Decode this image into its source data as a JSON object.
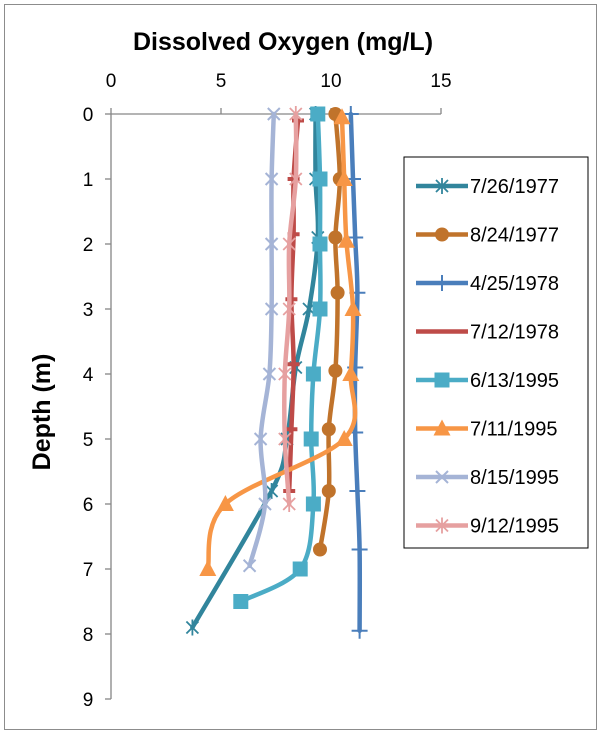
{
  "chart_data": {
    "type": "line",
    "title": "Dissolved Oxygen (mg/L)",
    "xlabel": "Dissolved Oxygen (mg/L)",
    "ylabel": "Depth (m)",
    "x_axis_position": "top",
    "y_axis_inverted": true,
    "xlim": [
      0,
      15
    ],
    "ylim": [
      0,
      9
    ],
    "x_ticks": [
      "0",
      "5",
      "10",
      "15"
    ],
    "y_ticks": [
      "0",
      "1",
      "2",
      "3",
      "4",
      "5",
      "6",
      "7",
      "8",
      "9"
    ],
    "grid": false,
    "legend_position": "right",
    "series": [
      {
        "name": "7/26/1977",
        "color": "#31859c",
        "marker": "star",
        "points": [
          [
            9.3,
            0
          ],
          [
            9.3,
            1
          ],
          [
            9.4,
            1.9
          ],
          [
            9.0,
            3
          ],
          [
            8.4,
            3.9
          ],
          [
            8.0,
            5
          ],
          [
            7.3,
            5.8
          ],
          [
            3.7,
            7.9
          ]
        ]
      },
      {
        "name": "8/24/1977",
        "color": "#c0732b",
        "marker": "circle",
        "points": [
          [
            10.2,
            0
          ],
          [
            10.4,
            1
          ],
          [
            10.2,
            1.9
          ],
          [
            10.3,
            2.75
          ],
          [
            10.2,
            3.95
          ],
          [
            9.9,
            4.85
          ],
          [
            9.9,
            5.8
          ],
          [
            9.5,
            6.7
          ]
        ]
      },
      {
        "name": "4/25/1978",
        "color": "#4a7ebb",
        "marker": "plus",
        "points": [
          [
            10.9,
            0
          ],
          [
            11.0,
            1
          ],
          [
            11.1,
            1.9
          ],
          [
            11.2,
            2.75
          ],
          [
            11.1,
            3.9
          ],
          [
            11.1,
            4.9
          ],
          [
            11.2,
            5.8
          ],
          [
            11.3,
            6.7
          ],
          [
            11.3,
            7.95
          ]
        ]
      },
      {
        "name": "7/12/1978",
        "color": "#be4b48",
        "marker": "dash",
        "points": [
          [
            8.5,
            0.1
          ],
          [
            8.3,
            1
          ],
          [
            8.3,
            1.85
          ],
          [
            8.2,
            2.85
          ],
          [
            8.3,
            3.85
          ],
          [
            8.2,
            4.85
          ],
          [
            8.1,
            5.8
          ]
        ]
      },
      {
        "name": "6/13/1995",
        "color": "#4bacc6",
        "marker": "square",
        "points": [
          [
            9.4,
            0
          ],
          [
            9.5,
            1
          ],
          [
            9.5,
            2
          ],
          [
            9.5,
            3
          ],
          [
            9.2,
            4
          ],
          [
            9.1,
            5
          ],
          [
            9.2,
            6
          ],
          [
            8.6,
            7
          ],
          [
            5.9,
            7.5
          ]
        ]
      },
      {
        "name": "7/11/1995",
        "color": "#f79646",
        "marker": "triangle",
        "points": [
          [
            10.5,
            0.05
          ],
          [
            10.6,
            1
          ],
          [
            10.7,
            1.95
          ],
          [
            11.0,
            3
          ],
          [
            10.9,
            4
          ],
          [
            10.6,
            5
          ],
          [
            5.2,
            6
          ],
          [
            4.4,
            7
          ]
        ]
      },
      {
        "name": "8/15/1995",
        "color": "#a5b4d6",
        "marker": "x",
        "points": [
          [
            7.4,
            0
          ],
          [
            7.3,
            1
          ],
          [
            7.3,
            2
          ],
          [
            7.3,
            3
          ],
          [
            7.2,
            4
          ],
          [
            6.8,
            5
          ],
          [
            7.0,
            6
          ],
          [
            6.3,
            6.95
          ]
        ]
      },
      {
        "name": "9/12/1995",
        "color": "#e6a0a0",
        "marker": "star",
        "points": [
          [
            8.4,
            0
          ],
          [
            8.4,
            1
          ],
          [
            8.1,
            2
          ],
          [
            8.1,
            3
          ],
          [
            7.9,
            4
          ],
          [
            7.9,
            5
          ],
          [
            8.1,
            6
          ]
        ]
      }
    ]
  }
}
